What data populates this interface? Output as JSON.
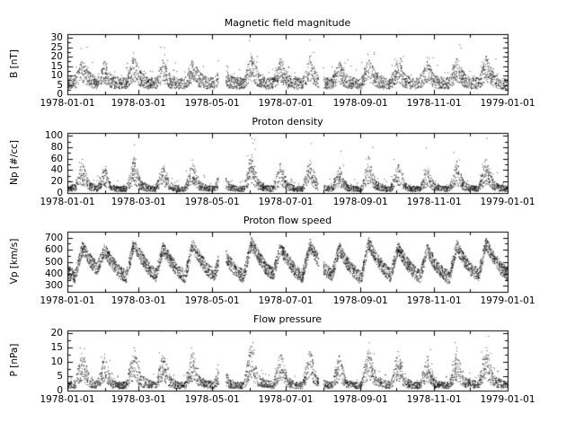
{
  "figure": {
    "background": "#ffffff",
    "ink": "#000000"
  },
  "chart_data": [
    {
      "type": "scatter",
      "title": "Magnetic field magnitude",
      "ylabel": "B [nT]",
      "ylim": [
        0,
        32
      ],
      "yticks": [
        0,
        5,
        10,
        15,
        20,
        25,
        30
      ],
      "yminor": [
        2.5,
        7.5,
        12.5,
        17.5,
        22.5,
        27.5
      ],
      "xlim": [
        0,
        365
      ],
      "xticks": {
        "labels": [
          "1978-01-01",
          "1978-03-01",
          "1978-05-01",
          "1978-07-01",
          "1978-09-01",
          "1978-11-01",
          "1979-01-01"
        ],
        "days": [
          0,
          59,
          120,
          181,
          243,
          304,
          365
        ]
      },
      "xminor": [
        31,
        90,
        151,
        212,
        273,
        334
      ],
      "envelope": [
        6,
        7,
        13,
        8,
        6,
        12,
        7,
        6,
        6,
        14,
        8,
        6,
        6,
        13,
        7,
        6,
        6,
        13,
        8,
        6,
        6,
        12,
        7,
        6,
        6,
        15,
        8,
        6,
        6,
        13,
        7,
        6,
        6,
        14,
        8,
        6,
        6,
        12,
        7,
        6,
        6,
        14,
        8,
        6,
        6,
        13,
        7,
        6,
        6,
        12,
        7,
        6,
        6,
        13,
        8,
        6,
        6,
        14,
        8,
        6,
        6
      ],
      "noise": {
        "type": "mult",
        "spread": 0.5,
        "tail_prob": 0.06,
        "tail": 0.9
      },
      "n_points": 3800,
      "seed": 11,
      "gaps": [
        [
          125,
          131
        ],
        [
          208,
          212
        ]
      ]
    },
    {
      "type": "scatter",
      "title": "Proton density",
      "ylabel": "Np [#/cc]",
      "ylim": [
        0,
        105
      ],
      "yticks": [
        0,
        20,
        40,
        60,
        80,
        100
      ],
      "yminor": [
        10,
        30,
        50,
        70,
        90
      ],
      "xlim": [
        0,
        365
      ],
      "xticks": {
        "labels": [
          "1978-01-01",
          "1978-03-01",
          "1978-05-01",
          "1978-07-01",
          "1978-09-01",
          "1978-11-01",
          "1979-01-01"
        ],
        "days": [
          0,
          59,
          120,
          181,
          243,
          304,
          365
        ]
      },
      "xminor": [
        31,
        90,
        151,
        212,
        273,
        334
      ],
      "envelope": [
        8,
        10,
        35,
        12,
        8,
        30,
        10,
        8,
        8,
        40,
        14,
        9,
        8,
        35,
        12,
        8,
        8,
        38,
        13,
        9,
        8,
        30,
        11,
        8,
        8,
        45,
        15,
        9,
        8,
        35,
        12,
        8,
        8,
        40,
        13,
        9,
        8,
        30,
        11,
        8,
        8,
        42,
        14,
        9,
        8,
        35,
        12,
        8,
        8,
        30,
        11,
        8,
        8,
        36,
        13,
        9,
        8,
        40,
        14,
        9,
        8
      ],
      "noise": {
        "type": "mult",
        "spread": 0.6,
        "tail_prob": 0.05,
        "tail": 1.2
      },
      "n_points": 3800,
      "seed": 22,
      "gaps": [
        [
          125,
          131
        ],
        [
          208,
          212
        ]
      ]
    },
    {
      "type": "scatter",
      "title": "Proton flow speed",
      "ylabel": "Vp [km/s]",
      "ylim": [
        250,
        750
      ],
      "yticks": [
        300,
        400,
        500,
        600,
        700
      ],
      "yminor": [
        350,
        450,
        550,
        650
      ],
      "xlim": [
        0,
        365
      ],
      "xticks": {
        "labels": [
          "1978-01-01",
          "1978-03-01",
          "1978-05-01",
          "1978-07-01",
          "1978-09-01",
          "1978-11-01",
          "1979-01-01"
        ],
        "days": [
          0,
          59,
          120,
          181,
          243,
          304,
          365
        ]
      },
      "xminor": [
        31,
        90,
        151,
        212,
        273,
        334
      ],
      "envelope": [
        420,
        380,
        620,
        520,
        440,
        600,
        500,
        420,
        380,
        650,
        540,
        450,
        390,
        610,
        510,
        430,
        380,
        640,
        530,
        440,
        390,
        600,
        500,
        420,
        380,
        660,
        550,
        450,
        400,
        620,
        510,
        430,
        380,
        640,
        530,
        440,
        390,
        610,
        500,
        420,
        370,
        650,
        540,
        450,
        390,
        620,
        510,
        430,
        380,
        600,
        490,
        410,
        370,
        630,
        520,
        440,
        390,
        650,
        540,
        450,
        400
      ],
      "noise": {
        "type": "add",
        "amp": 55,
        "tail_prob": 0,
        "tail": 0
      },
      "n_points": 5200,
      "seed": 33,
      "gaps": [
        [
          125,
          131
        ],
        [
          208,
          212
        ]
      ]
    },
    {
      "type": "scatter",
      "title": "Flow pressure",
      "ylabel": "P [nPa]",
      "ylim": [
        0,
        21
      ],
      "yticks": [
        0,
        5,
        10,
        15,
        20
      ],
      "yminor": [
        2.5,
        7.5,
        12.5,
        17.5
      ],
      "xlim": [
        0,
        365
      ],
      "xticks": {
        "labels": [
          "1978-01-01",
          "1978-03-01",
          "1978-05-01",
          "1978-07-01",
          "1978-09-01",
          "1978-11-01",
          "1979-01-01"
        ],
        "days": [
          0,
          59,
          120,
          181,
          243,
          304,
          365
        ]
      },
      "xminor": [
        31,
        90,
        151,
        212,
        273,
        334
      ],
      "envelope": [
        2,
        2.5,
        9,
        3,
        2,
        8,
        2.5,
        2,
        2,
        10,
        3.5,
        2.5,
        2,
        9,
        3,
        2,
        2,
        9,
        3,
        2.5,
        2,
        8,
        2.5,
        2,
        2,
        11,
        3.5,
        2.5,
        2,
        9,
        3,
        2,
        2,
        10,
        3,
        2.5,
        2,
        8,
        2.5,
        2,
        2,
        10,
        3.5,
        2.5,
        2,
        9,
        3,
        2,
        2,
        8,
        2.5,
        2,
        2,
        9,
        3,
        2.5,
        2,
        10,
        3.5,
        2.5,
        2
      ],
      "noise": {
        "type": "mult",
        "spread": 0.6,
        "tail_prob": 0.06,
        "tail": 0.9
      },
      "n_points": 3800,
      "seed": 44,
      "gaps": [
        [
          125,
          131
        ],
        [
          208,
          212
        ]
      ]
    }
  ]
}
